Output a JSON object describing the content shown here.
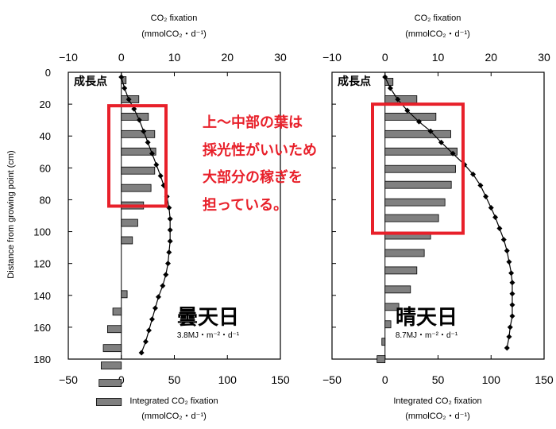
{
  "annotation": {
    "lines": [
      "上～中部の葉は",
      "採光性がいいため",
      "大部分の稼ぎを",
      "担っている。"
    ],
    "color": "#e8202a"
  },
  "colors": {
    "bar_fill": "#808080",
    "bar_stroke": "#000000",
    "curve": "#000000",
    "highlight": "#e8202a"
  },
  "chart_data": [
    {
      "type": "bar",
      "orientation": "horizontal",
      "panel_label": "曇天日",
      "irradiance": "3.8MJ・m⁻²・d⁻¹",
      "growing_point_label": "成長点",
      "ylabel": "Distance from growing point (cm)",
      "ylim": [
        0,
        180
      ],
      "y_ticks": [
        0,
        20,
        40,
        60,
        80,
        100,
        120,
        140,
        160,
        180
      ],
      "top_axis": {
        "label": "CO₂ fixation",
        "unit": "(mmolCO₂・d⁻¹)",
        "range": [
          -10,
          30
        ],
        "ticks": [
          -10,
          0,
          10,
          20,
          30
        ]
      },
      "bottom_axis": {
        "label": "Integrated CO₂ fixation",
        "unit": "(mmolCO₂・d⁻¹)",
        "range": [
          -50,
          150
        ],
        "ticks": [
          -50,
          0,
          50,
          100,
          150
        ]
      },
      "bars": {
        "name": "CO₂ fixation",
        "distance": [
          5,
          17,
          28,
          39,
          50,
          62,
          73,
          84,
          95,
          106,
          140,
          151,
          162,
          174,
          185,
          196,
          208
        ],
        "values": [
          0.9,
          3.3,
          5.1,
          6.3,
          6.5,
          6.3,
          5.6,
          4.2,
          3.1,
          2.1,
          1.1,
          -1.6,
          -2.6,
          -3.4,
          -3.8,
          -4.2,
          -4.7
        ]
      },
      "highlight_rows": [
        22,
        83
      ],
      "curve": {
        "name": "Integrated CO₂ fixation",
        "distance": [
          3,
          10,
          17,
          23,
          30,
          37,
          44,
          51,
          58,
          65,
          71,
          78,
          85,
          92,
          99,
          106,
          113,
          120,
          127,
          134,
          141,
          148,
          155,
          162,
          169,
          176
        ],
        "values": [
          0,
          3,
          7,
          12,
          17,
          21,
          25,
          29,
          33,
          37,
          40,
          43,
          45,
          46,
          46,
          46,
          45,
          44,
          42,
          39,
          35,
          32,
          29,
          26,
          23,
          19
        ]
      }
    },
    {
      "type": "bar",
      "orientation": "horizontal",
      "panel_label": "晴天日",
      "irradiance": "8.7MJ・m⁻²・d⁻¹",
      "growing_point_label": "成長点",
      "ylim": [
        0,
        180
      ],
      "top_axis": {
        "label": "CO₂ fixation",
        "unit": "(mmolCO₂・d⁻¹)",
        "range": [
          -10,
          30
        ],
        "ticks": [
          -10,
          0,
          10,
          20,
          30
        ]
      },
      "bottom_axis": {
        "label": "Integrated CO₂ fixation",
        "unit": "(mmolCO₂・d⁻¹)",
        "range": [
          -50,
          150
        ],
        "ticks": [
          -50,
          0,
          50,
          100,
          150
        ]
      },
      "bars": {
        "name": "CO₂ fixation",
        "distance": [
          6,
          17,
          28,
          39,
          50,
          61,
          71,
          82,
          92,
          103,
          114,
          125,
          137,
          148,
          159,
          170,
          181
        ],
        "values": [
          1.5,
          6.0,
          9.6,
          12.4,
          13.6,
          13.3,
          12.5,
          11.3,
          10.1,
          8.6,
          7.4,
          6.0,
          4.8,
          2.6,
          1.1,
          -0.6,
          -1.5
        ]
      },
      "highlight_rows": [
        21,
        100
      ],
      "curve": {
        "name": "Integrated CO₂ fixation",
        "distance": [
          3,
          10,
          17,
          24,
          31,
          37,
          44,
          51,
          58,
          64,
          71,
          78,
          85,
          91,
          98,
          105,
          112,
          119,
          126,
          132,
          139,
          146,
          153,
          160,
          166,
          173
        ],
        "values": [
          0,
          5,
          12,
          21,
          32,
          43,
          53,
          64,
          75,
          83,
          90,
          95,
          100,
          104,
          108,
          112,
          115,
          117,
          119,
          120,
          120,
          120,
          120,
          118,
          117,
          115
        ]
      }
    }
  ]
}
